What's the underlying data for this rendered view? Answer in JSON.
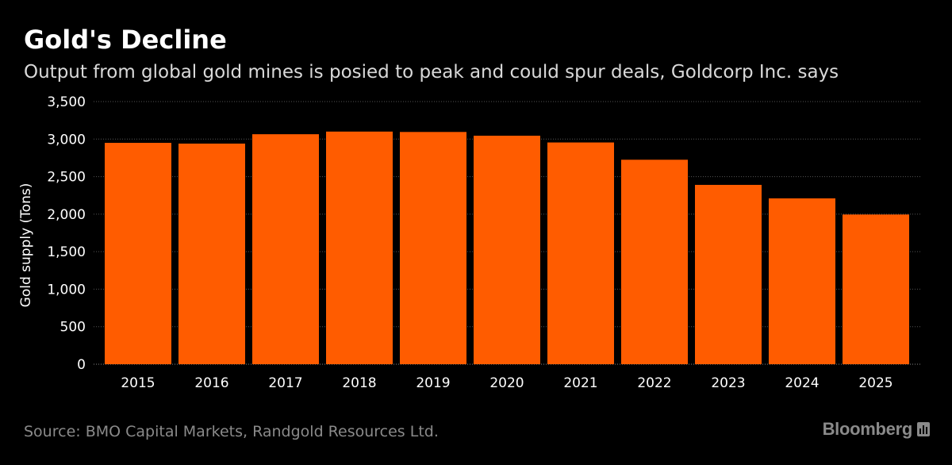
{
  "header": {
    "title": "Gold's Decline",
    "subtitle": "Output from global gold mines is posied to peak and could spur deals, Goldcorp Inc. says"
  },
  "footer": {
    "source": "Source: BMO Capital Markets, Randgold Resources Ltd.",
    "brand": "Bloomberg",
    "brand_icon": "bloomberg-terminal-icon"
  },
  "colors": {
    "background": "#000000",
    "bar": "#ff5c00",
    "grid": "#555555",
    "text": "#ffffff",
    "muted": "#8a8a8a"
  },
  "chart_data": {
    "type": "bar",
    "title": "Gold's Decline",
    "subtitle": "Output from global gold mines is posied to peak and could spur deals, Goldcorp Inc. says",
    "xlabel": "",
    "ylabel": "Gold supply (Tons)",
    "categories": [
      "2015",
      "2016",
      "2017",
      "2018",
      "2019",
      "2020",
      "2021",
      "2022",
      "2023",
      "2024",
      "2025"
    ],
    "values": [
      2950,
      2940,
      3065,
      3100,
      3095,
      3045,
      2955,
      2725,
      2390,
      2210,
      1995
    ],
    "ylim": [
      0,
      3500
    ],
    "yticks": [
      0,
      500,
      1000,
      1500,
      2000,
      2500,
      3000,
      3500
    ],
    "ytick_labels": [
      "0",
      "500",
      "1,000",
      "1,500",
      "2,000",
      "2,500",
      "3,000",
      "3,500"
    ],
    "grid": "horizontal dotted",
    "legend": "none"
  }
}
